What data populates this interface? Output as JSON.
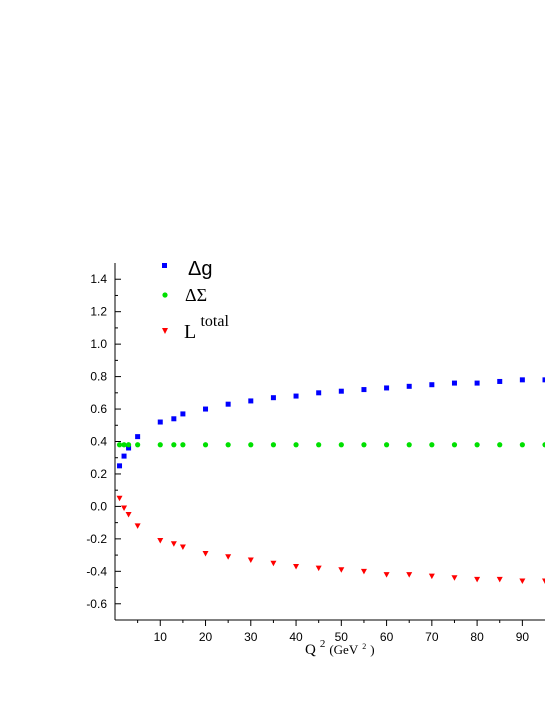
{
  "chart_data": {
    "type": "scatter",
    "xlabel": {
      "base": "Q",
      "exp": "2",
      "unit_open": "(GeV",
      "unit_exp": "2",
      "unit_close": ")"
    },
    "ylabel": "",
    "xlim": [
      0,
      95
    ],
    "ylim": [
      -0.7,
      1.5
    ],
    "x_ticks": [
      10,
      20,
      30,
      40,
      50,
      60,
      70,
      80,
      90
    ],
    "y_ticks": [
      1.4,
      1.2,
      1.0,
      0.8,
      0.6,
      0.4,
      0.2,
      0.0,
      -0.2,
      -0.4,
      -0.6
    ],
    "x_tick_labels": [
      "10",
      "20",
      "30",
      "40",
      "50",
      "60",
      "70",
      "80",
      "90"
    ],
    "y_tick_labels": [
      "1.4",
      "1.2",
      "1.0",
      "0.8",
      "0.6",
      "0.4",
      "0.2",
      "0.0",
      "-0.2",
      "-0.4",
      "-0.6"
    ],
    "legend_position": "top-left",
    "series": [
      {
        "name": "Δg",
        "marker": "square",
        "color": "#0000ff",
        "x": [
          1,
          2,
          3,
          5,
          10,
          13,
          15,
          20,
          25,
          30,
          35,
          40,
          45,
          50,
          55,
          60,
          65,
          70,
          75,
          80,
          85,
          90,
          95
        ],
        "y": [
          0.25,
          0.31,
          0.36,
          0.43,
          0.52,
          0.54,
          0.57,
          0.6,
          0.63,
          0.65,
          0.67,
          0.68,
          0.7,
          0.71,
          0.72,
          0.73,
          0.74,
          0.75,
          0.76,
          0.76,
          0.77,
          0.78,
          0.78
        ]
      },
      {
        "name": "ΔΣ",
        "marker": "circle",
        "color": "#00e000",
        "x": [
          1,
          2,
          3,
          5,
          10,
          13,
          15,
          20,
          25,
          30,
          35,
          40,
          45,
          50,
          55,
          60,
          65,
          70,
          75,
          80,
          85,
          90,
          95
        ],
        "y": [
          0.38,
          0.38,
          0.38,
          0.38,
          0.38,
          0.38,
          0.38,
          0.38,
          0.38,
          0.38,
          0.38,
          0.38,
          0.38,
          0.38,
          0.38,
          0.38,
          0.38,
          0.38,
          0.38,
          0.38,
          0.38,
          0.38,
          0.38
        ]
      },
      {
        "name": "L^total",
        "label_base": "L",
        "label_sup": "total",
        "marker": "triangle-down",
        "color": "#ff0000",
        "x": [
          1,
          2,
          3,
          5,
          10,
          13,
          15,
          20,
          25,
          30,
          35,
          40,
          45,
          50,
          55,
          60,
          65,
          70,
          75,
          80,
          85,
          90,
          95
        ],
        "y": [
          0.05,
          -0.01,
          -0.05,
          -0.12,
          -0.21,
          -0.23,
          -0.25,
          -0.29,
          -0.31,
          -0.33,
          -0.35,
          -0.37,
          -0.38,
          -0.39,
          -0.4,
          -0.42,
          -0.42,
          -0.43,
          -0.44,
          -0.45,
          -0.45,
          -0.46,
          -0.46
        ]
      }
    ]
  }
}
